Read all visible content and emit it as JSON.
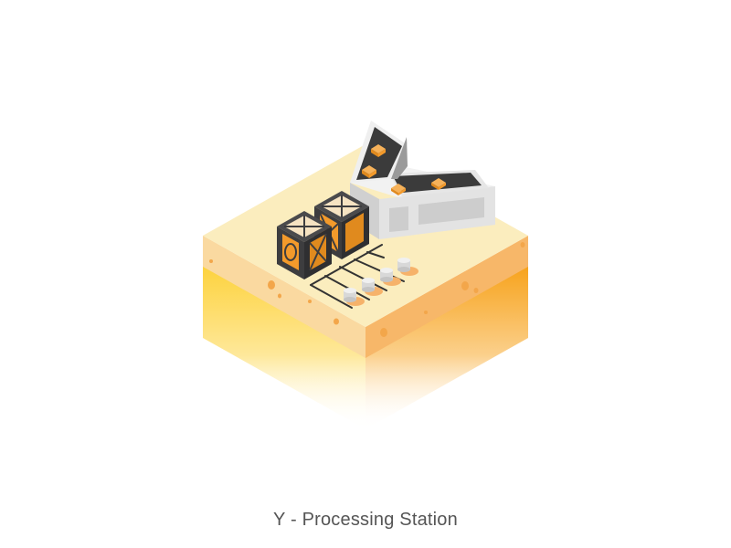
{
  "caption": "Y - Processing Station",
  "illustration": {
    "subject": "processing-station",
    "colors": {
      "ground_top": "#FBEDBE",
      "ground_left_band": "#FAD9A0",
      "ground_right_band": "#F7B769",
      "soil_left": "#FDD23C",
      "soil_right": "#F7A21A",
      "pores": "#F3A64A",
      "crate_dark": "#3D3D3F",
      "crate_orange": "#F39A2B",
      "machine_light": "#E6E6E6",
      "machine_mid": "#CFCFCF",
      "belt": "#3B3B3B",
      "rails": "#333333",
      "bollard": "#DADADA"
    }
  }
}
